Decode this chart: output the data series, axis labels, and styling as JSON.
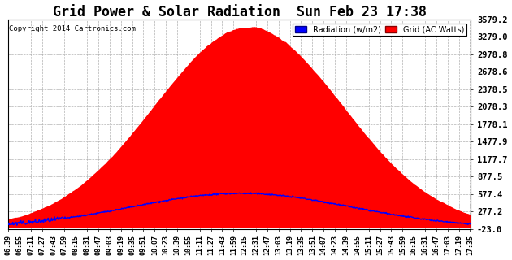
{
  "title": "Grid Power & Solar Radiation  Sun Feb 23 17:38",
  "copyright": "Copyright 2014 Cartronics.com",
  "legend_labels": [
    "Radiation (w/m2)",
    "Grid (AC Watts)"
  ],
  "legend_colors": [
    "#0000ff",
    "#ff0000"
  ],
  "yticks": [
    -23.0,
    277.2,
    577.4,
    877.5,
    1177.7,
    1477.9,
    1778.1,
    2078.3,
    2378.5,
    2678.6,
    2978.8,
    3279.0,
    3579.2
  ],
  "ymin": -23.0,
  "ymax": 3579.2,
  "bg_color": "#ffffff",
  "plot_bg_color": "#ffffff",
  "grid_color": "#aaaaaa",
  "title_fontsize": 13
}
